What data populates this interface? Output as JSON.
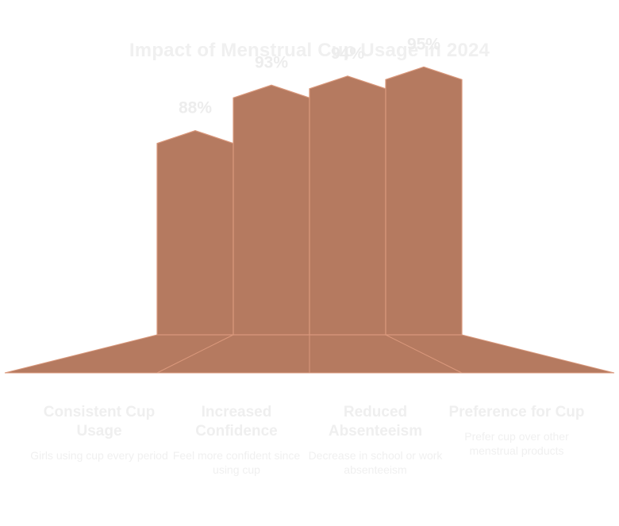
{
  "chart_data": {
    "type": "bar",
    "title": "Impact of Menstrual Cup Usage in 2024",
    "categories": [
      "Consistent Cup Usage",
      "Increased Confidence",
      "Reduced Absenteeism",
      "Preference for Cup"
    ],
    "descriptions": [
      "Girls using cup every period",
      "Feel more confident since using cup",
      "Decrease in school or work absenteeism",
      "Prefer cup over other menstrual products"
    ],
    "values": [
      88,
      93,
      94,
      95
    ],
    "value_labels": [
      "88%",
      "93%",
      "94%",
      "95%"
    ],
    "unit": "%",
    "ylim": [
      0,
      100
    ],
    "grid": false,
    "legend": "none"
  },
  "colors": {
    "bar_fill": "#b57a60",
    "bar_stroke": "#d9987c",
    "text_faint": "#efefef"
  }
}
